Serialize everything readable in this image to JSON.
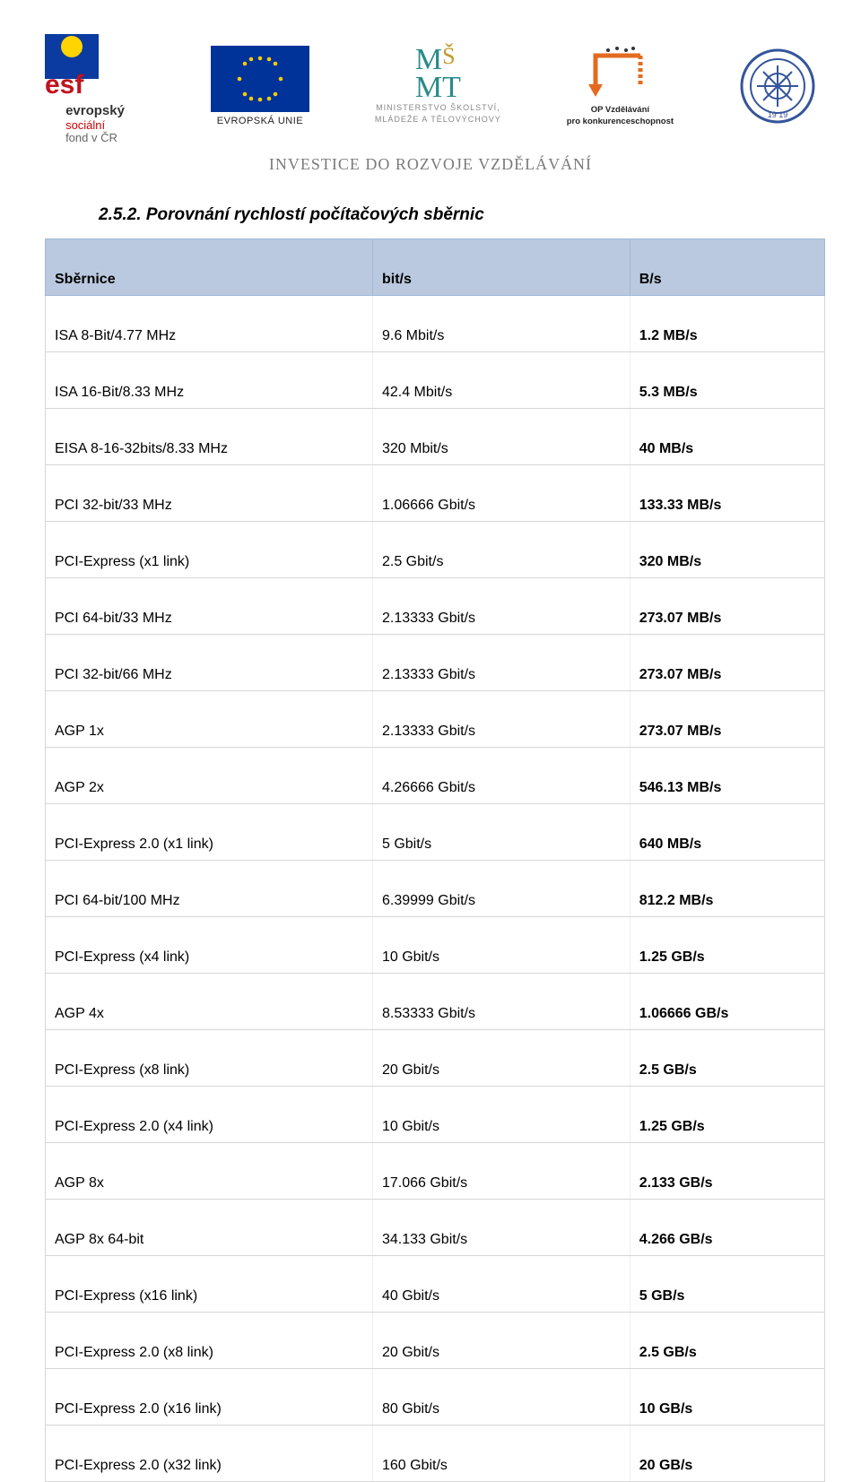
{
  "header": {
    "tagline": "INVESTICE DO ROZVOJE VZDĚLÁVÁNÍ",
    "esf": {
      "line1": "evropský",
      "line2": "sociální",
      "line3": "fond v ČR"
    },
    "eu_label": "EVROPSKÁ UNIE",
    "eu_flag_bg": "#003399",
    "eu_star_color": "#ffcc00",
    "msmt": {
      "line1": "MINISTERSTVO ŠKOLSTVÍ,",
      "line2": "MLÁDEŽE A TĚLOVÝCHOVY"
    },
    "opvk": {
      "line1": "OP Vzdělávání",
      "line2": "pro konkurenceschopnost"
    },
    "colors": {
      "esf_red": "#c1121f",
      "esf_blue": "#0b3aa0",
      "esf_yellow": "#ffd400",
      "msmt_teal": "#2b8a8a",
      "msmt_gold": "#c49a2a",
      "opvk_orange": "#e46a1f",
      "seal_blue": "#35559c"
    }
  },
  "section_title": "2.5.2.  Porovnání rychlostí počítačových sběrnic",
  "table": {
    "header_bg": "#bac9df",
    "grid_color": "#d6d6d6",
    "columns": [
      "Sběrnice",
      "bit/s",
      "B/s"
    ],
    "rows": [
      [
        "ISA 8-Bit/4.77 MHz",
        "9.6 Mbit/s",
        "1.2 MB/s"
      ],
      [
        "ISA 16-Bit/8.33 MHz",
        "42.4 Mbit/s",
        "5.3 MB/s"
      ],
      [
        "EISA 8-16-32bits/8.33 MHz",
        "320 Mbit/s",
        "40 MB/s"
      ],
      [
        "PCI 32-bit/33 MHz",
        "1.06666 Gbit/s",
        "133.33 MB/s"
      ],
      [
        "PCI-Express (x1 link)",
        "2.5 Gbit/s",
        "320 MB/s"
      ],
      [
        "PCI 64-bit/33 MHz",
        "2.13333 Gbit/s",
        "273.07 MB/s"
      ],
      [
        "PCI 32-bit/66 MHz",
        "2.13333 Gbit/s",
        "273.07 MB/s"
      ],
      [
        "AGP 1x",
        "2.13333 Gbit/s",
        "273.07 MB/s"
      ],
      [
        "AGP 2x",
        "4.26666 Gbit/s",
        "546.13 MB/s"
      ],
      [
        "PCI-Express 2.0 (x1 link)",
        "5 Gbit/s",
        "640 MB/s"
      ],
      [
        "PCI 64-bit/100 MHz",
        "6.39999 Gbit/s",
        "812.2 MB/s"
      ],
      [
        "PCI-Express (x4 link)",
        "10 Gbit/s",
        "1.25 GB/s"
      ],
      [
        "AGP 4x",
        "8.53333 Gbit/s",
        "1.06666 GB/s"
      ],
      [
        "PCI-Express (x8 link)",
        "20 Gbit/s",
        "2.5 GB/s"
      ],
      [
        "PCI-Express 2.0 (x4 link)",
        "10 Gbit/s",
        "1.25 GB/s"
      ],
      [
        "AGP 8x",
        "17.066 Gbit/s",
        "2.133 GB/s"
      ],
      [
        "AGP 8x 64-bit",
        "34.133 Gbit/s",
        "4.266 GB/s"
      ],
      [
        "PCI-Express (x16 link)",
        "40 Gbit/s",
        "5 GB/s"
      ],
      [
        "PCI-Express 2.0 (x8 link)",
        "20 Gbit/s",
        "2.5 GB/s"
      ],
      [
        "PCI-Express 2.0 (x16 link)",
        "80 Gbit/s",
        "10 GB/s"
      ],
      [
        "PCI-Express 2.0 (x32 link)",
        "160 Gbit/s",
        "20 GB/s"
      ]
    ]
  }
}
